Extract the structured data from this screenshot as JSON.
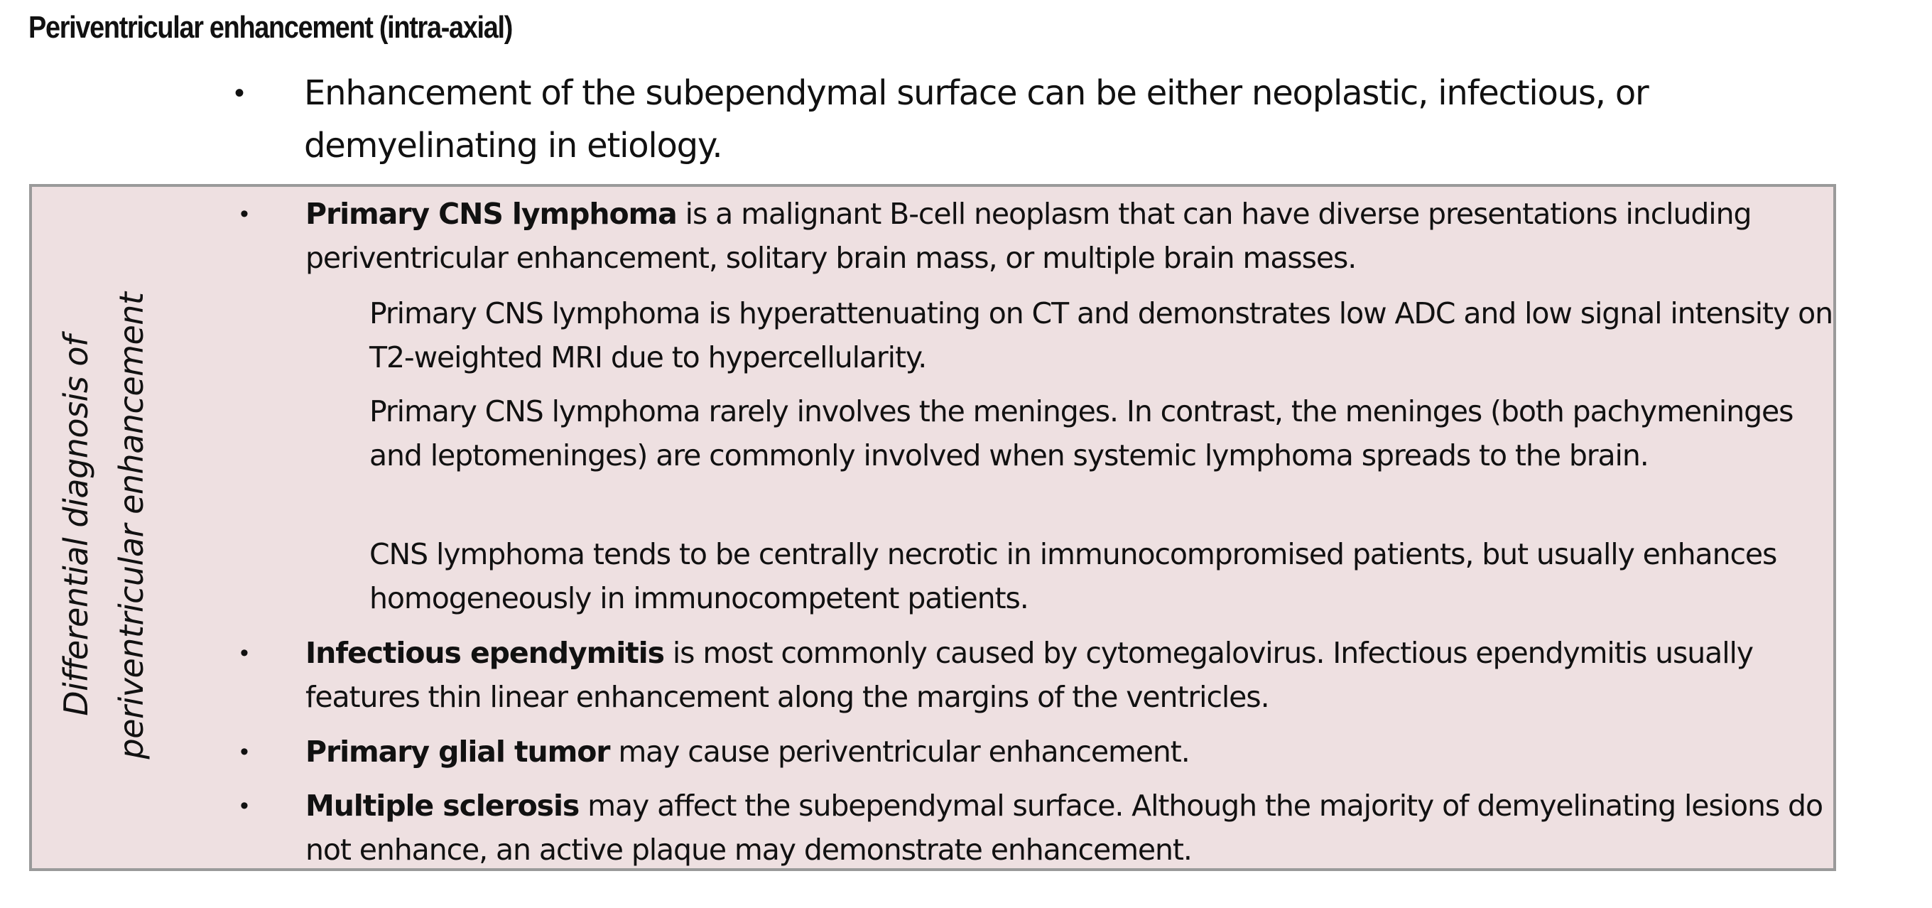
{
  "title": "Periventricular enhancement (intra-axial)",
  "intro": {
    "bullet": "•",
    "text": "Enhancement of the subependymal surface can be either neoplastic, infectious, or demyelinating in etiology."
  },
  "differential": {
    "side_label_line1": "Differential diagnosis of",
    "side_label_line2": "periventricular enhancement",
    "bullet_glyph": "•",
    "items": [
      {
        "term": "Primary CNS lymphoma",
        "text": " is a malignant B-cell neoplasm that can have diverse presentations including periventricular enhancement, solitary brain mass, or multiple brain masses.",
        "subpoints": [
          "Primary CNS lymphoma is hyperattenuating on CT and demonstrates low ADC and low signal intensity on T2-weighted MRI due to hypercellularity.",
          "Primary CNS lymphoma rarely involves the meninges. In contrast, the meninges (both pachymeninges and leptomeninges) are commonly involved when systemic lymphoma spreads to the brain.",
          "CNS lymphoma tends to be centrally necrotic in immunocompromised patients, but usually enhances homogeneously in immunocompetent patients."
        ]
      },
      {
        "term": "Infectious ependymitis",
        "text": " is most commonly caused by cytomegalovirus. Infectious ependymitis usually features thin linear enhancement along the margins of the ventricles."
      },
      {
        "term": "Primary glial tumor",
        "text": " may cause periventricular enhancement."
      },
      {
        "term": "Multiple sclerosis",
        "text": " may affect the subependymal surface. Although the majority of demyelinating lesions do not enhance, an active plaque may demonstrate enhancement."
      }
    ]
  },
  "colors": {
    "box_background": "#eee0e1",
    "box_border": "#9a9a9a",
    "text": "#111111"
  }
}
